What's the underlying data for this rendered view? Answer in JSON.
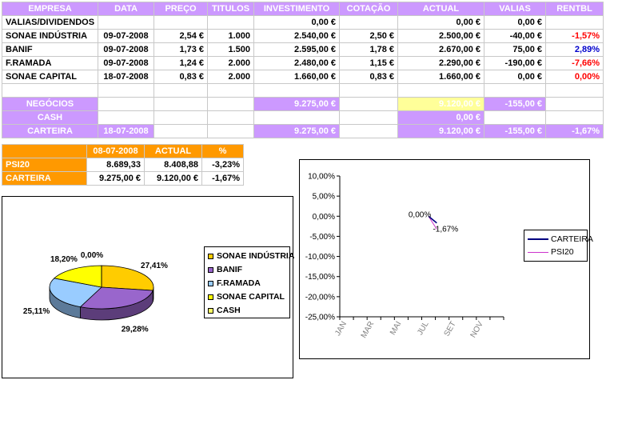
{
  "holdings": {
    "headers": [
      "EMPRESA",
      "DATA",
      "PREÇO",
      "TITULOS",
      "INVESTIMENTO",
      "COTAÇÃO",
      "ACTUAL",
      "VALIAS",
      "RENTBL"
    ],
    "rows": [
      {
        "empresa": "VALIAS/DIVIDENDOS",
        "data": "",
        "preco": "",
        "titulos": "",
        "investimento": "0,00 €",
        "cotacao": "",
        "actual": "0,00 €",
        "valias": "0,00 €",
        "rentbl": "",
        "rentbl_color": ""
      },
      {
        "empresa": "SONAE INDÚSTRIA",
        "data": "09-07-2008",
        "preco": "2,54 €",
        "titulos": "1.000",
        "investimento": "2.540,00 €",
        "cotacao": "2,50 €",
        "actual": "2.500,00 €",
        "valias": "-40,00 €",
        "rentbl": "-1,57%",
        "rentbl_color": "red"
      },
      {
        "empresa": "BANIF",
        "data": "09-07-2008",
        "preco": "1,73 €",
        "titulos": "1.500",
        "investimento": "2.595,00 €",
        "cotacao": "1,78 €",
        "actual": "2.670,00 €",
        "valias": "75,00 €",
        "rentbl": "2,89%",
        "rentbl_color": "blue"
      },
      {
        "empresa": "F.RAMADA",
        "data": "09-07-2008",
        "preco": "1,24 €",
        "titulos": "2.000",
        "investimento": "2.480,00 €",
        "cotacao": "1,15 €",
        "actual": "2.290,00 €",
        "valias": "-190,00 €",
        "rentbl": "-7,66%",
        "rentbl_color": "red"
      },
      {
        "empresa": "SONAE CAPITAL",
        "data": "18-07-2008",
        "preco": "0,83 €",
        "titulos": "2.000",
        "investimento": "1.660,00 €",
        "cotacao": "0,83 €",
        "actual": "1.660,00 €",
        "valias": "0,00 €",
        "rentbl": "0,00%",
        "rentbl_color": "red"
      }
    ],
    "summary": {
      "negocios": {
        "label": "NEGÓCIOS",
        "investimento": "9.275,00 €",
        "actual": "9.120,00 €",
        "valias": "-155,00 €"
      },
      "cash": {
        "label": "CASH",
        "actual": "0,00 €"
      },
      "carteira": {
        "label": "CARTEIRA",
        "data": "18-07-2008",
        "investimento": "9.275,00 €",
        "actual": "9.120,00 €",
        "valias": "-155,00 €",
        "rentbl": "-1,67%"
      }
    }
  },
  "psi20_table": {
    "headers": [
      "",
      "08-07-2008",
      "ACTUAL",
      "%"
    ],
    "rows": [
      {
        "label": "PSI20",
        "start": "8.689,33",
        "actual": "8.408,88",
        "pct": "-3,23%"
      },
      {
        "label": "CARTEIRA",
        "start": "9.275,00 €",
        "actual": "9.120,00 €",
        "pct": "-1,67%"
      }
    ]
  },
  "chart_data": [
    {
      "type": "pie",
      "categories": [
        "SONAE INDÚSTRIA",
        "BANIF",
        "F.RAMADA",
        "SONAE CAPITAL",
        "CASH"
      ],
      "values": [
        27.41,
        29.28,
        25.11,
        18.2,
        0.0
      ],
      "labels": [
        "27,41%",
        "29,28%",
        "25,11%",
        "18,20%",
        "0,00%"
      ],
      "colors": [
        "#ffcc00",
        "#9966cc",
        "#99ccff",
        "#ffff00",
        "#ffff66"
      ],
      "legend_position": "right",
      "three_d": true
    },
    {
      "type": "line",
      "categories": [
        "JAN",
        "MAR",
        "MAI",
        "JUL",
        "SET",
        "NOV"
      ],
      "yticks": [
        "10,00%",
        "5,00%",
        "0,00%",
        "-5,00%",
        "-10,00%",
        "-15,00%",
        "-20,00%",
        "-25,00%"
      ],
      "ylim": [
        -25,
        10
      ],
      "series": [
        {
          "name": "CARTEIRA",
          "color": "#000080",
          "points": [
            {
              "month": 7.0,
              "value": 0.0
            },
            {
              "month": 7.6,
              "value": -1.67
            }
          ]
        },
        {
          "name": "PSI20",
          "color": "#cc33cc",
          "points": [
            {
              "month": 7.0,
              "value": 0.0
            },
            {
              "month": 7.6,
              "value": -3.23
            }
          ]
        }
      ],
      "annotations": [
        {
          "text": "0,00%",
          "month": 7.0,
          "value": 0.0
        },
        {
          "text": "-1,67%",
          "month": 7.6,
          "value": -1.67
        }
      ],
      "legend_position": "right",
      "grid": false
    }
  ]
}
